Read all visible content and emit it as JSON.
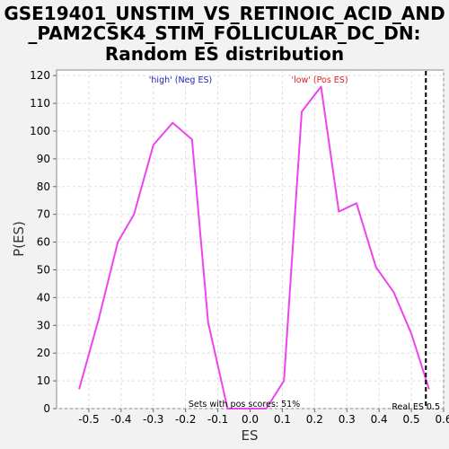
{
  "chart_data": {
    "type": "line",
    "title_lines": [
      "GSE19401_UNSTIM_VS_RETINOIC_ACID_AND",
      "_PAM2CSK4_STIM_FOLLICULAR_DC_DN:",
      "Random ES distribution"
    ],
    "xlabel": "ES",
    "ylabel": "P(ES)",
    "xlim": [
      -0.6,
      0.6
    ],
    "ylim": [
      0,
      122
    ],
    "x_ticks": [
      -0.5,
      -0.4,
      -0.3,
      -0.2,
      -0.1,
      0.0,
      0.1,
      0.2,
      0.3,
      0.4,
      0.5,
      0.6
    ],
    "x_tick_labels": [
      "-0.5",
      "-0.4",
      "-0.3",
      "-0.2",
      "-0.1",
      "0.0",
      "0.1",
      "0.2",
      "0.3",
      "0.4",
      "0.5",
      "0.6"
    ],
    "y_ticks": [
      0,
      10,
      20,
      30,
      40,
      50,
      60,
      70,
      80,
      90,
      100,
      110,
      120
    ],
    "y_tick_labels": [
      "0",
      "10",
      "20",
      "30",
      "40",
      "50",
      "60",
      "70",
      "80",
      "90",
      "100",
      "110",
      "120"
    ],
    "grid": true,
    "series": [
      {
        "color": "#ee44ee",
        "x": [
          -0.53,
          -0.47,
          -0.41,
          -0.36,
          -0.3,
          -0.24,
          -0.18,
          -0.13,
          -0.07,
          -0.01,
          0.05,
          0.105,
          0.16,
          0.22,
          0.275,
          0.33,
          0.39,
          0.445,
          0.5,
          0.555
        ],
        "y": [
          7,
          32,
          60,
          70,
          95,
          103,
          97,
          31,
          0,
          0,
          0,
          10,
          107,
          116,
          71,
          74,
          51,
          42,
          27,
          7
        ]
      }
    ],
    "real_es": 0.545,
    "annotations": {
      "high": "'high' (Neg ES)",
      "low": "'low' (Pos ES)",
      "pos_scores": "Sets with pos scores: 51%",
      "real_es_label": "Real ES 0.5"
    },
    "colors": {
      "high": "#2222bb",
      "low": "#dd2222",
      "real_es_line": "#000000"
    }
  }
}
